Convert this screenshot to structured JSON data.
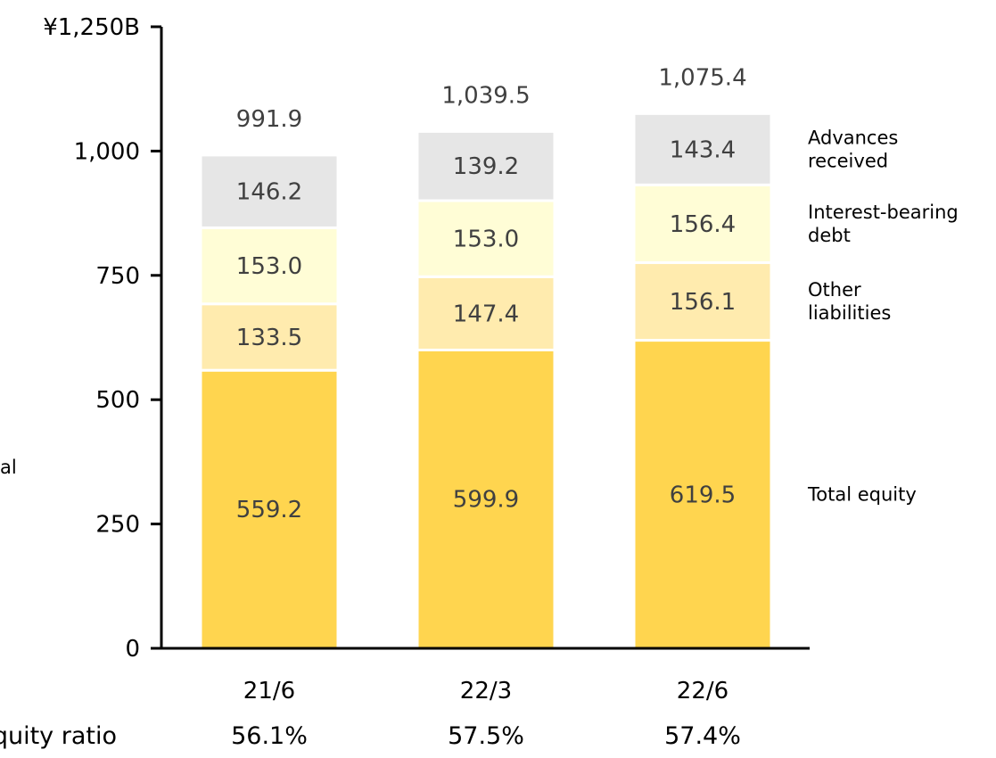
{
  "chart_data": {
    "type": "bar",
    "stacked": true,
    "categories": [
      "21/6",
      "22/3",
      "22/6"
    ],
    "series": [
      {
        "name": "Total equity",
        "values": [
          559.2,
          599.9,
          619.5
        ],
        "color": "#FFD54F",
        "label_color": "#404040"
      },
      {
        "name": "Other liabilities",
        "values": [
          133.5,
          147.4,
          156.1
        ],
        "color": "#FFEBAE",
        "label_color": "#404040"
      },
      {
        "name": "Interest-bearing debt",
        "values": [
          153.0,
          153.0,
          156.4
        ],
        "color": "#FFFDD6",
        "label_color": "#404040"
      },
      {
        "name": "Advances received",
        "values": [
          146.2,
          139.2,
          143.4
        ],
        "color": "#E6E6E6",
        "label_color": "#404040"
      }
    ],
    "legend_lines": [
      [
        "Total equity"
      ],
      [
        "Other",
        "liabilities"
      ],
      [
        "Interest-bearing",
        "debt"
      ],
      [
        "Advances",
        "received"
      ]
    ],
    "totals": [
      "991.9",
      "1,039.5",
      "1,075.4"
    ],
    "ylim": [
      0,
      1250
    ],
    "yticks": [
      0,
      250,
      500,
      750,
      1000,
      1250
    ],
    "ytick_labels": [
      "0",
      "250",
      "500",
      "750",
      "1,000",
      "¥1,250B"
    ],
    "legend_placement": "right",
    "grid": false
  },
  "equity_ratio": {
    "label": "Equity ratio",
    "values": [
      "56.1%",
      "57.5%",
      "57.4%"
    ]
  },
  "side_text": "al"
}
